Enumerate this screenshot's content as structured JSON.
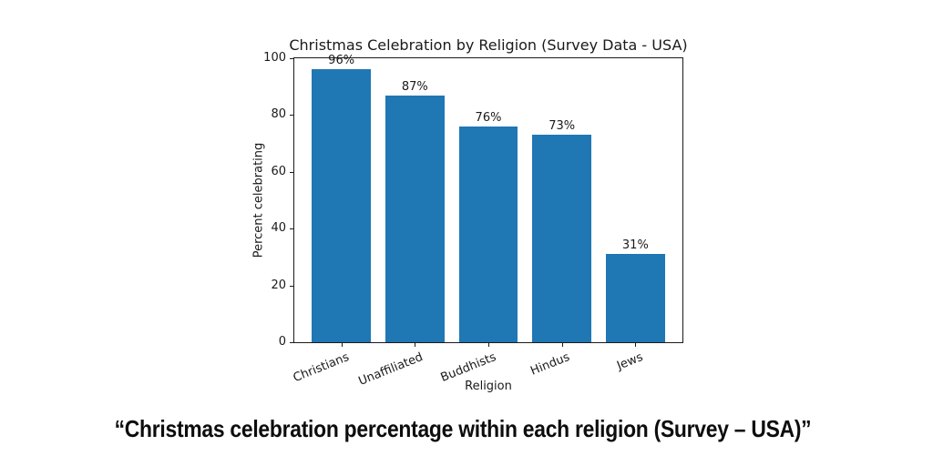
{
  "page": {
    "background": "#ffffff"
  },
  "chart_data": {
    "type": "bar",
    "title": "Christmas Celebration by Religion (Survey Data - USA)",
    "xlabel": "Religion",
    "ylabel": "Percent celebrating",
    "categories": [
      "Christians",
      "Unaffiliated",
      "Buddhists",
      "Hindus",
      "Jews"
    ],
    "values": [
      96,
      87,
      76,
      73,
      31
    ],
    "value_labels": [
      "96%",
      "87%",
      "76%",
      "73%",
      "31%"
    ],
    "ylim": [
      0,
      100
    ],
    "yticks": [
      0,
      20,
      40,
      60,
      80,
      100
    ],
    "bar_color": "#1f77b4",
    "axis_color": "#1a1a1a",
    "grid": false,
    "legend": "none",
    "xtick_rotation_deg": 22
  },
  "caption": {
    "text": "“Christmas celebration percentage within each religion (Survey – USA)”"
  }
}
